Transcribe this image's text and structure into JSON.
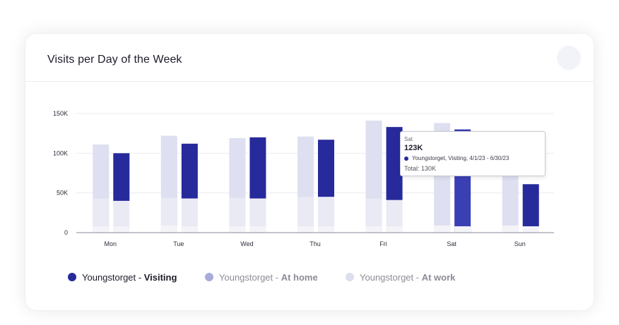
{
  "card": {
    "title": "Visits per Day of the Week"
  },
  "colors": {
    "visiting": "#262a9b",
    "visiting_hover": "#3b3fb4",
    "at_home": "#eaeaf5",
    "at_work": "#dedff0",
    "bottom_light": "#f3f3f8",
    "axis": "#8a8a98",
    "grid": "#ececf1",
    "legend_home_dot": "#a8abdb",
    "legend_work_dot": "#dcdded"
  },
  "chart_data": {
    "type": "bar",
    "categories": [
      "Mon",
      "Tue",
      "Wed",
      "Thu",
      "Fri",
      "Sat",
      "Sun"
    ],
    "ylim": [
      0,
      150000
    ],
    "yticks": [
      {
        "value": 0,
        "label": "0"
      },
      {
        "value": 50000,
        "label": "50K"
      },
      {
        "value": 100000,
        "label": "100K"
      },
      {
        "value": 150000,
        "label": "150K"
      }
    ],
    "left_stack": {
      "at_work_total": [
        111000,
        122000,
        119000,
        121000,
        141000,
        138000,
        112000
      ],
      "at_home_top": [
        43000,
        44000,
        44000,
        45000,
        43000,
        0,
        0
      ],
      "bottom_segment": [
        8000,
        9000,
        8000,
        8000,
        8000,
        9000,
        9000
      ]
    },
    "right_stack": {
      "visiting_top": [
        100000,
        112000,
        120000,
        117000,
        133000,
        130000,
        61000
      ],
      "visiting_bottom": [
        40000,
        43000,
        43000,
        45000,
        41000,
        8000,
        8000
      ],
      "bottom_segment": [
        8000,
        8000,
        8000,
        8000,
        8000,
        8000,
        8000
      ]
    },
    "legend": [
      {
        "prefix": "Youngstorget - ",
        "label": "Visiting",
        "key": "visiting"
      },
      {
        "prefix": "Youngstorget - ",
        "label": "At home",
        "key": "at_home"
      },
      {
        "prefix": "Youngstorget - ",
        "label": "At work",
        "key": "at_work"
      }
    ],
    "tooltip": {
      "day": "Sat",
      "value": "123K",
      "series": "Youngstorget, Visiting, 4/1/23 - 6/30/23",
      "total": "Total: 130K"
    }
  }
}
